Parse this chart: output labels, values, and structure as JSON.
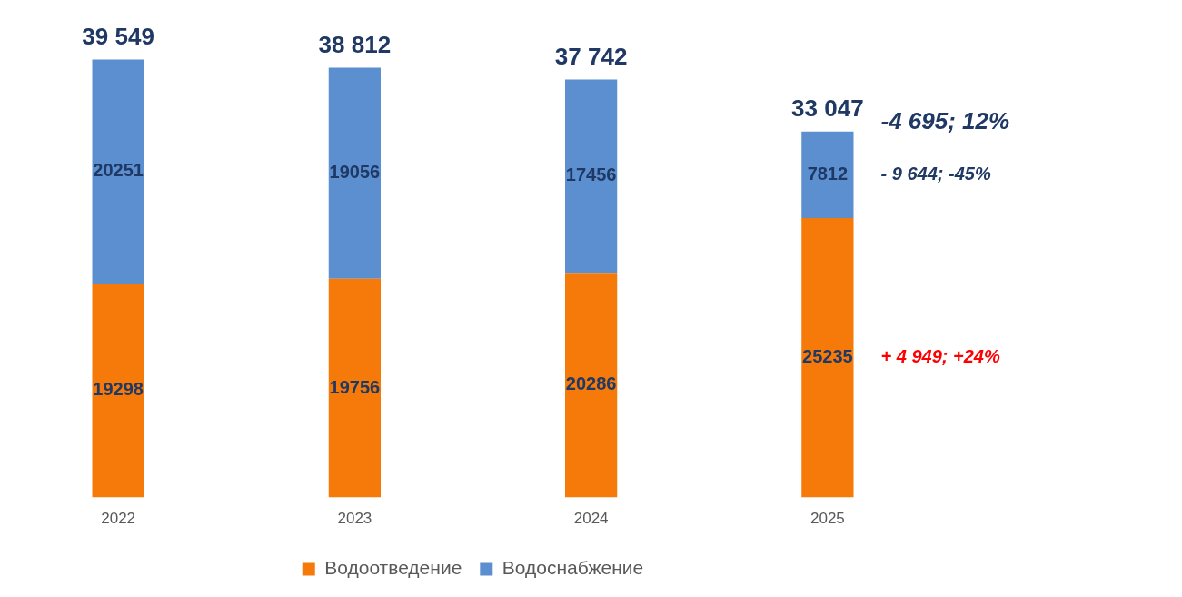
{
  "chart_data": {
    "type": "bar",
    "stacked": true,
    "categories": [
      "2022",
      "2023",
      "2024",
      "2025"
    ],
    "series": [
      {
        "name": "Водоотведение",
        "color": "#f57a0a",
        "values": [
          19298,
          19756,
          20286,
          25235
        ]
      },
      {
        "name": "Водоснабжение",
        "color": "#5b8fd0",
        "values": [
          20251,
          19056,
          17456,
          7812
        ]
      }
    ],
    "data_labels": true,
    "totals": [
      "39 549",
      "38 812",
      "37 742",
      "33 047"
    ],
    "annotations": [
      "-4 695; 12%",
      "- 9 644; -45%",
      "+ 4 949; +24%"
    ],
    "legend": "bottom",
    "grid": false
  }
}
